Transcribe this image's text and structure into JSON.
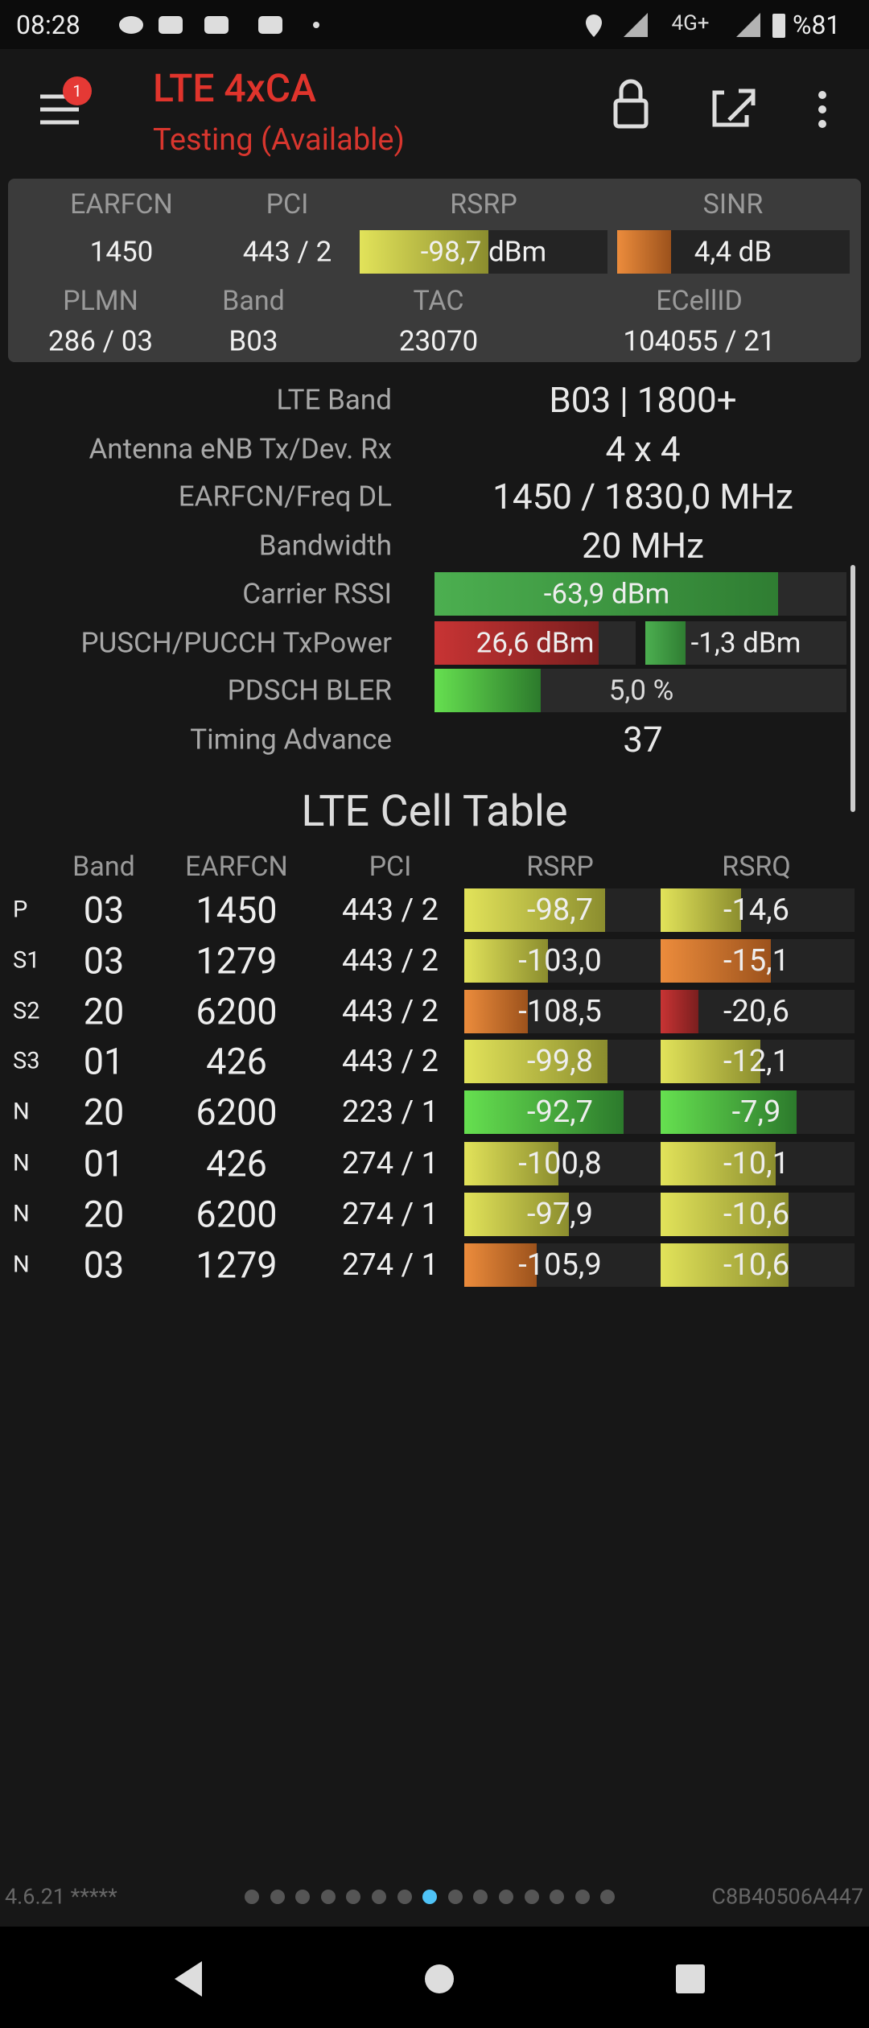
{
  "status_bar": {
    "time": "08:28",
    "network": "4G+",
    "battery": "%81"
  },
  "toolbar": {
    "title": "LTE 4xCA",
    "subtitle": "Testing (Available)",
    "badge": "1"
  },
  "summary": {
    "headers": [
      "EARFCN",
      "PCI",
      "RSRP",
      "SINR"
    ],
    "values": [
      "1450",
      "443 / 2",
      "-98,7 dBm",
      "4,4 dB"
    ],
    "headers2": [
      "PLMN",
      "Band",
      "TAC",
      "ECellID"
    ],
    "values2": [
      "286 / 03",
      "B03",
      "23070",
      "104055 / 21"
    ]
  },
  "details": [
    {
      "label": "LTE Band",
      "values": [
        "B03 | 1800+"
      ]
    },
    {
      "label": "Antenna eNB Tx/Dev. Rx",
      "values": [
        "4 x 4"
      ]
    },
    {
      "label": "EARFCN/Freq DL",
      "values": [
        "1450 / 1830,0 MHz"
      ]
    },
    {
      "label": "Bandwidth",
      "values": [
        "20 MHz"
      ]
    },
    {
      "label": "Carrier RSSI",
      "values": [
        "-63,9 dBm"
      ]
    },
    {
      "label": "PUSCH/PUCCH TxPower",
      "values": [
        "26,6 dBm",
        "-1,3 dBm"
      ]
    },
    {
      "label": "PDSCH BLER",
      "values": [
        "5,0 %"
      ]
    },
    {
      "label": "Timing Advance",
      "values": [
        "37"
      ]
    }
  ],
  "cell_table": {
    "title": "LTE Cell Table",
    "headers": [
      "Band",
      "EARFCN",
      "PCI",
      "RSRP",
      "RSRQ"
    ],
    "rows": [
      [
        "P",
        "03",
        "1450",
        "443 / 2",
        "-98,7",
        "-14,6"
      ],
      [
        "S1",
        "03",
        "1279",
        "443 / 2",
        "-103,0",
        "-15,1"
      ],
      [
        "S2",
        "20",
        "6200",
        "443 / 2",
        "-108,5",
        "-20,6"
      ],
      [
        "S3",
        "01",
        "426",
        "443 / 2",
        "-99,8",
        "-12,1"
      ],
      [
        "N",
        "20",
        "6200",
        "223 / 1",
        "-92,7",
        "-7,9"
      ],
      [
        "N",
        "01",
        "426",
        "274 / 1",
        "-100,8",
        "-10,1"
      ],
      [
        "N",
        "20",
        "6200",
        "274 / 1",
        "-97,9",
        "-10,6"
      ],
      [
        "N",
        "03",
        "1279",
        "274 / 1",
        "-105,9",
        "-10,6"
      ]
    ]
  },
  "footer": {
    "version": "4.6.21 *****",
    "device_id": "C8B40506A447"
  }
}
